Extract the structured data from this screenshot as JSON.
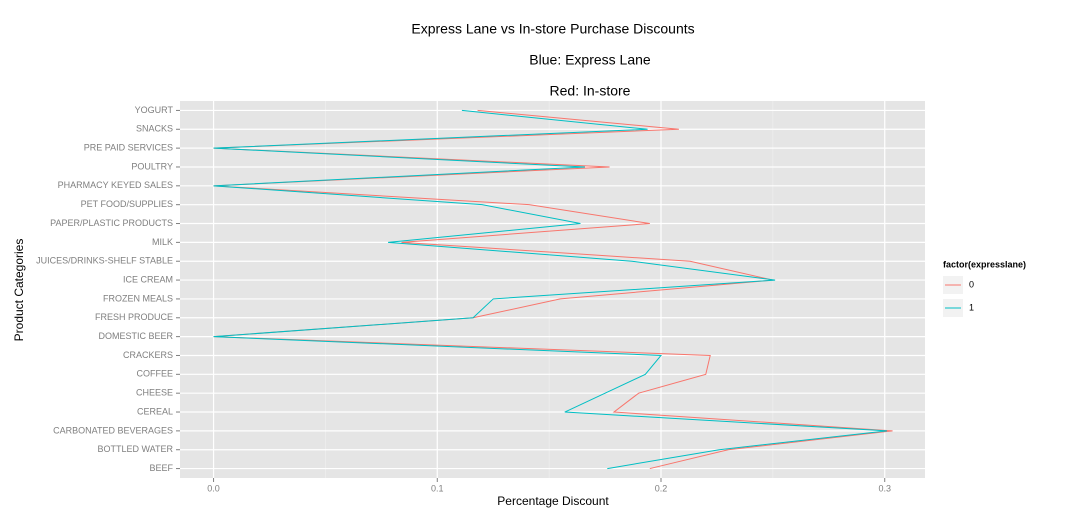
{
  "chart_data": {
    "type": "line",
    "orientation": "horizontal",
    "title": "Express Lane vs In-store Purchase Discounts",
    "subtitle": "Blue:  Express Lane",
    "subtitle2": "Red:  In-store",
    "x_label": "Percentage Discount",
    "y_label": "Product Categories",
    "legend_title": "factor(expresslane)",
    "legend": "right",
    "grid": true,
    "categories": [
      "BEEF",
      "BOTTLED WATER",
      "CARBONATED BEVERAGES",
      "CEREAL",
      "CHEESE",
      "COFFEE",
      "CRACKERS",
      "DOMESTIC BEER",
      "FRESH PRODUCE",
      "FROZEN MEALS",
      "ICE CREAM",
      "JUICES/DRINKS-SHELF STABLE",
      "MILK",
      "PAPER/PLASTIC PRODUCTS",
      "PET FOOD/SUPPLIES",
      "PHARMACY KEYED SALES",
      "POULTRY",
      "PRE PAID SERVICES",
      "SNACKS",
      "YOGURT"
    ],
    "series": [
      {
        "name": "0",
        "color": "#F8766D",
        "values": [
          0.195,
          0.23,
          0.3035,
          0.179,
          0.19,
          0.22,
          0.222,
          0,
          0.116,
          0.155,
          0.25,
          0.213,
          0.084,
          0.195,
          0.141,
          0,
          0.177,
          0,
          0.208,
          0.118
        ]
      },
      {
        "name": "1",
        "color": "#00BFC4",
        "values": [
          0.176,
          0.226,
          0.301,
          0.157,
          0.175,
          0.193,
          0.2,
          0,
          0.116,
          0.125,
          0.251,
          0.187,
          0.078,
          0.164,
          0.12,
          0,
          0.166,
          0,
          0.194,
          0.111
        ]
      }
    ],
    "xlim": [
      -0.015,
      0.318
    ],
    "xticks": [
      {
        "value": 0,
        "label": "0.0"
      },
      0.1,
      0.2,
      0.3
    ]
  }
}
